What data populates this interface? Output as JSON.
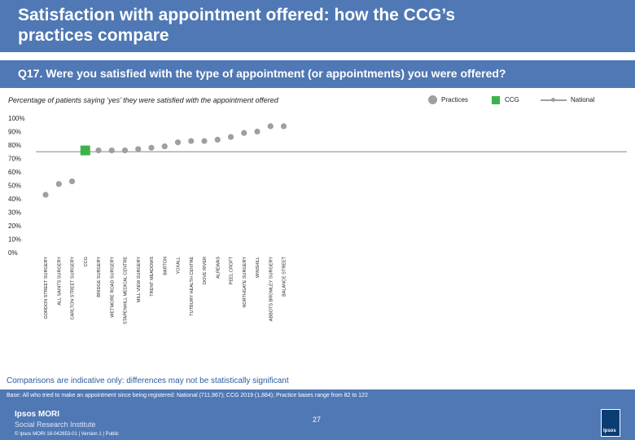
{
  "slide": {
    "title": "Satisfaction with appointment offered: how the CCG’s practices compare",
    "question": "Q17. Were you satisfied with the type of appointment (or appointments) you were offered?",
    "subtitle": "Percentage of patients saying ‘yes’ they were satisfied with the appointment offered",
    "note": "Comparisons are indicative only: differences may not be statistically significant",
    "base": "Base: All who tried to make an appointment since being registered: National (711,967); CCG 2019 (1,884); Practice bases range from 82 to 122",
    "brand_line1": "Ipsos MORI",
    "brand_line2": "Social Research Institute",
    "footer": "© Ipsos MORI     18-042653-01 | Version 1 | Public",
    "page_number": "27",
    "logo_text": "Ipsos"
  },
  "legend": {
    "practices": "Practices",
    "ccg": "CCG",
    "national": "National"
  },
  "colors": {
    "band": "#4f78b4",
    "practice_dot": "#9e9fa1",
    "ccg_square": "#3cb34a",
    "national_line": "#9e9fa1",
    "note_text": "#2e5b9a"
  },
  "chart_data": {
    "type": "scatter",
    "ylim": [
      0,
      100
    ],
    "yticks": [
      "0%",
      "10%",
      "20%",
      "30%",
      "40%",
      "50%",
      "60%",
      "70%",
      "80%",
      "90%",
      "100%"
    ],
    "national_value": 75,
    "categories": [
      "GORDON STREET SURGERY",
      "ALL SAINTS SURGERY",
      "CARLTON STREET SURGERY",
      "CCG",
      "BRIDGE SURGERY",
      "WETMORE ROAD SURGERY",
      "STAPENHILL MEDICAL CENTRE",
      "MILL VIEW SURGERY",
      "TRENT MEADOWS",
      "BARTON",
      "YOXALL",
      "TUTBURY HEALTH CENTRE",
      "DOVE RIVER",
      "ALREWAS",
      "PEEL CROFT",
      "NORTHGATE SURGERY",
      "WINSHILL",
      "ABBOTS BROMLEY SURGERY",
      "BALANCE STREET"
    ],
    "values": [
      43,
      51,
      53,
      76,
      76,
      76,
      76,
      77,
      78,
      79,
      82,
      83,
      83,
      84,
      86,
      89,
      90,
      94,
      94
    ],
    "kinds": [
      "practice",
      "practice",
      "practice",
      "ccg",
      "practice",
      "practice",
      "practice",
      "practice",
      "practice",
      "practice",
      "practice",
      "practice",
      "practice",
      "practice",
      "practice",
      "practice",
      "practice",
      "practice",
      "practice"
    ]
  }
}
